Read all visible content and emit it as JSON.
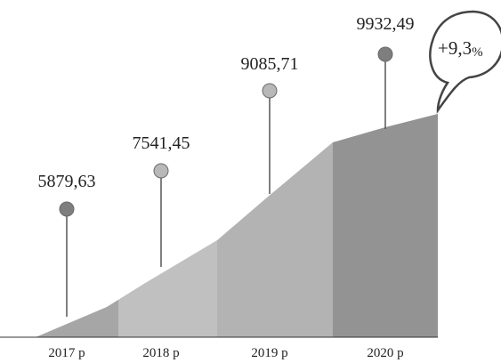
{
  "chart_data": {
    "type": "area",
    "categories": [
      "2017 р",
      "2018 р",
      "2019 р",
      "2020 р"
    ],
    "values": [
      5879.63,
      7541.45,
      9085.71,
      9932.49
    ],
    "value_labels": [
      "5879,63",
      "7541,45",
      "9085,71",
      "9932,49"
    ],
    "title": "",
    "xlabel": "",
    "ylabel": "",
    "growth_badge": {
      "value": "+9,3",
      "unit": "%"
    }
  },
  "colors": {
    "area_2017": "#a6a6a6",
    "area_2018": "#c0c0c0",
    "area_2019": "#b3b3b3",
    "area_2020": "#939393",
    "marker_dark": "#7e7e7e",
    "marker_light": "#b8b8b8",
    "stem": "#555555",
    "baseline": "#333333",
    "badge_stroke": "#444444"
  }
}
